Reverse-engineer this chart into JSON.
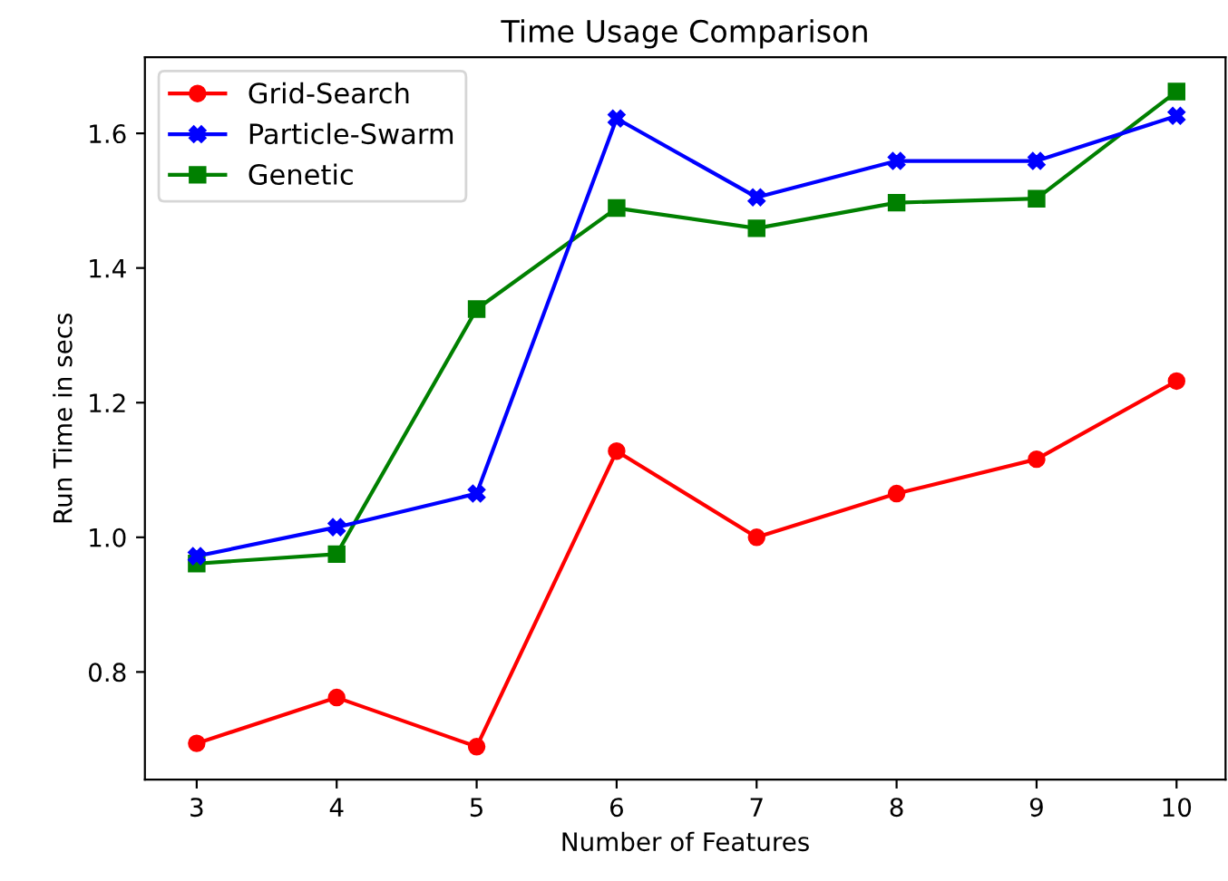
{
  "chart_data": {
    "type": "line",
    "title": "Time Usage Comparison",
    "xlabel": "Number of Features",
    "ylabel": "Run Time in secs",
    "x": [
      3,
      4,
      5,
      6,
      7,
      8,
      9,
      10
    ],
    "series": [
      {
        "name": "Grid-Search",
        "color": "#ff0000",
        "marker": "circle",
        "values": [
          0.694,
          0.762,
          0.689,
          1.128,
          1.0,
          1.065,
          1.116,
          1.232
        ]
      },
      {
        "name": "Particle-Swarm",
        "color": "#0000ff",
        "marker": "cross",
        "values": [
          0.972,
          1.015,
          1.065,
          1.622,
          1.505,
          1.559,
          1.559,
          1.626
        ]
      },
      {
        "name": "Genetic",
        "color": "#008000",
        "marker": "square",
        "values": [
          0.961,
          0.975,
          1.339,
          1.489,
          1.459,
          1.497,
          1.503,
          1.662
        ]
      }
    ],
    "xlim": [
      2.63,
      10.35
    ],
    "ylim": [
      0.64,
      1.713
    ],
    "xticks": [
      3,
      4,
      5,
      6,
      7,
      8,
      9,
      10
    ],
    "yticks": [
      {
        "value": 0.8,
        "label": "0.8"
      },
      {
        "value": 1.0,
        "label": "1.0"
      },
      {
        "value": 1.2,
        "label": "1.2"
      },
      {
        "value": 1.4,
        "label": "1.4"
      },
      {
        "value": 1.6,
        "label": "1.6"
      }
    ],
    "grid": false,
    "legend": "top left",
    "line_style": "solid"
  }
}
